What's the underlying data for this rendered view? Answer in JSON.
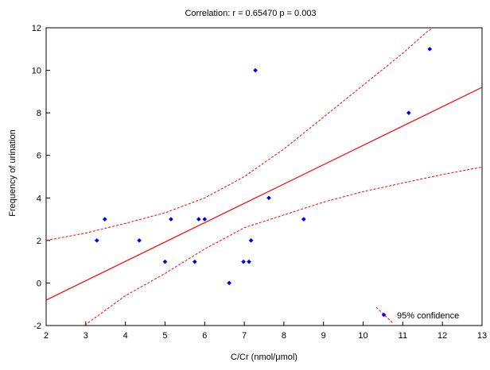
{
  "chart_data": {
    "type": "scatter",
    "title": "Correlation: r = 0.65470 p = 0.003",
    "xlabel": "C/Cr (nmol/μmol)",
    "ylabel": "Frequency of urination",
    "xlim": [
      2,
      13
    ],
    "ylim": [
      -2,
      12
    ],
    "x_ticks": [
      2,
      3,
      4,
      5,
      6,
      7,
      8,
      9,
      10,
      11,
      12,
      13
    ],
    "y_ticks": [
      -2,
      0,
      2,
      4,
      6,
      8,
      10,
      12
    ],
    "grid": false,
    "legend_placement": "bottom-right",
    "legend_label": "95% confidence",
    "colors": {
      "points": "#0000ee",
      "line": "#ff0000",
      "confidence": "#ff0000"
    },
    "points": [
      {
        "x": 3.28,
        "y": 2
      },
      {
        "x": 3.48,
        "y": 3
      },
      {
        "x": 4.35,
        "y": 2
      },
      {
        "x": 5.0,
        "y": 1
      },
      {
        "x": 5.15,
        "y": 3
      },
      {
        "x": 5.75,
        "y": 1
      },
      {
        "x": 5.85,
        "y": 3
      },
      {
        "x": 6.0,
        "y": 3
      },
      {
        "x": 6.62,
        "y": 0
      },
      {
        "x": 6.98,
        "y": 1
      },
      {
        "x": 7.12,
        "y": 1
      },
      {
        "x": 7.17,
        "y": 2
      },
      {
        "x": 7.28,
        "y": 10
      },
      {
        "x": 7.62,
        "y": 4
      },
      {
        "x": 8.5,
        "y": 3
      },
      {
        "x": 11.15,
        "y": 8
      },
      {
        "x": 11.68,
        "y": 11
      }
    ],
    "regression_line": [
      {
        "x": 2,
        "y": -0.8
      },
      {
        "x": 13,
        "y": 9.2
      }
    ],
    "confidence_upper": [
      {
        "x": 2,
        "y": 2.0
      },
      {
        "x": 3,
        "y": 2.35
      },
      {
        "x": 4,
        "y": 2.8
      },
      {
        "x": 5,
        "y": 3.3
      },
      {
        "x": 6,
        "y": 4.0
      },
      {
        "x": 7,
        "y": 5.0
      },
      {
        "x": 8,
        "y": 6.3
      },
      {
        "x": 9,
        "y": 7.8
      },
      {
        "x": 10,
        "y": 9.3
      },
      {
        "x": 11,
        "y": 10.8
      },
      {
        "x": 11.6,
        "y": 11.8
      },
      {
        "x": 12,
        "y": 12.3
      }
    ],
    "confidence_lower": [
      {
        "x": 2.9,
        "y": -2.1
      },
      {
        "x": 3,
        "y": -1.95
      },
      {
        "x": 4,
        "y": -0.6
      },
      {
        "x": 5,
        "y": 0.45
      },
      {
        "x": 6,
        "y": 1.6
      },
      {
        "x": 7,
        "y": 2.6
      },
      {
        "x": 8,
        "y": 3.2
      },
      {
        "x": 9,
        "y": 3.8
      },
      {
        "x": 10,
        "y": 4.3
      },
      {
        "x": 11,
        "y": 4.7
      },
      {
        "x": 12,
        "y": 5.1
      },
      {
        "x": 13,
        "y": 5.45
      }
    ]
  }
}
